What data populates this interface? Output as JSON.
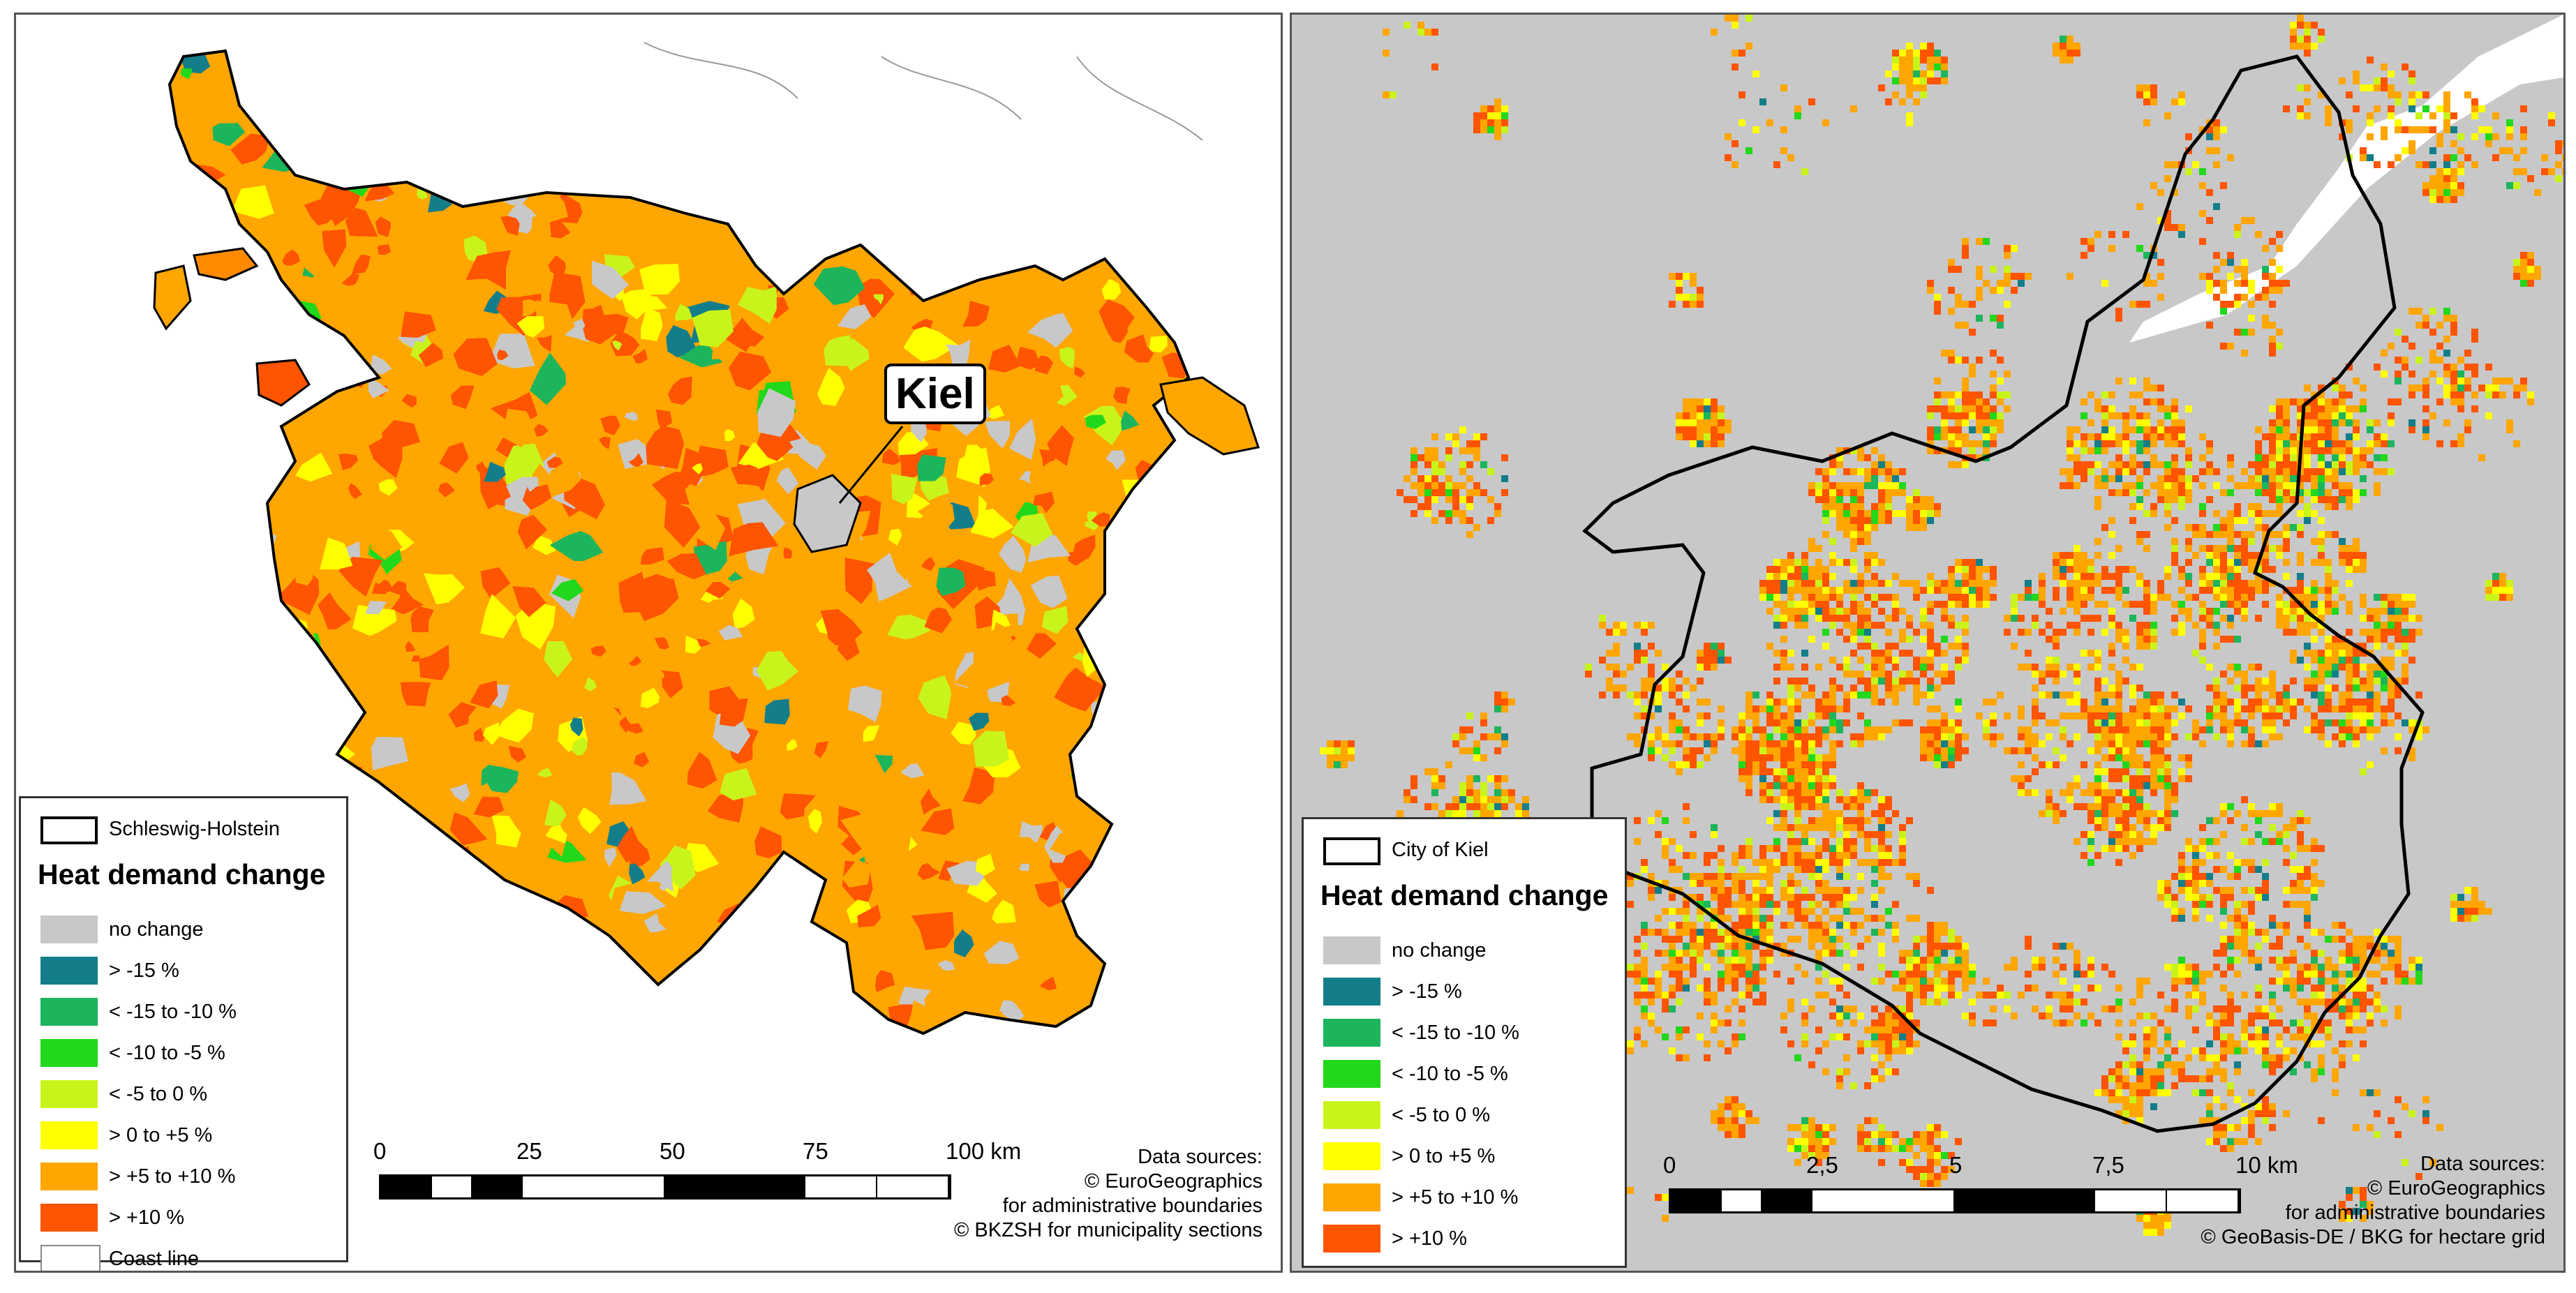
{
  "colors": {
    "no_change": "#c8c8c8",
    "gt_minus15": "#137e8a",
    "minus15_to_minus10": "#1cb55c",
    "minus10_to_minus5": "#22d81c",
    "minus5_to_0": "#c9f41b",
    "0_to_plus5": "#ffff00",
    "plus5_to_plus10": "#ffa600",
    "gt_plus10": "#ff5400",
    "coast_line": "#ffffff"
  },
  "left": {
    "callout": "Kiel",
    "legend": {
      "outline_label": "Schleswig-Holstein",
      "title": "Heat demand change",
      "items": [
        {
          "label": "no change",
          "color": "#c8c8c8"
        },
        {
          "label": "> -15 %",
          "color": "#137e8a"
        },
        {
          "label": "< -15 to -10 %",
          "color": "#1cb55c"
        },
        {
          "label": "< -10 to -5 %",
          "color": "#22d81c"
        },
        {
          "label": "< -5 to 0 %",
          "color": "#c9f41b"
        },
        {
          "label": "> 0 to +5 %",
          "color": "#ffff00"
        },
        {
          "label": "> +5 to +10 %",
          "color": "#ffa600"
        },
        {
          "label": "> +10 %",
          "color": "#ff5400"
        },
        {
          "label": "Coast line",
          "color": "#ffffff"
        }
      ]
    },
    "scale": {
      "ticks": [
        "0",
        "25",
        "50",
        "75",
        "100 km"
      ]
    },
    "sources": {
      "line1": "Data sources:",
      "line2": "© EuroGeographics",
      "line3": "for administrative boundaries",
      "line4": "© BKZSH  for municipality sections"
    }
  },
  "right": {
    "legend": {
      "outline_label": "City of Kiel",
      "title": "Heat demand change",
      "items": [
        {
          "label": "no change",
          "color": "#c8c8c8"
        },
        {
          "label": "> -15 %",
          "color": "#137e8a"
        },
        {
          "label": "< -15 to -10 %",
          "color": "#1cb55c"
        },
        {
          "label": "< -10 to -5 %",
          "color": "#22d81c"
        },
        {
          "label": "< -5 to 0 %",
          "color": "#c9f41b"
        },
        {
          "label": "> 0 to +5 %",
          "color": "#ffff00"
        },
        {
          "label": "> +5 to +10 %",
          "color": "#ffa600"
        },
        {
          "label": "> +10 %",
          "color": "#ff5400"
        }
      ]
    },
    "scale": {
      "ticks": [
        "0",
        "2,5",
        "5",
        "7,5",
        "10 km"
      ]
    },
    "sources": {
      "line1": "Data sources:",
      "line2": "© EuroGeographics",
      "line3": "for administrative boundaries",
      "line4": "© GeoBasis-DE / BKG for hectare grid"
    }
  }
}
